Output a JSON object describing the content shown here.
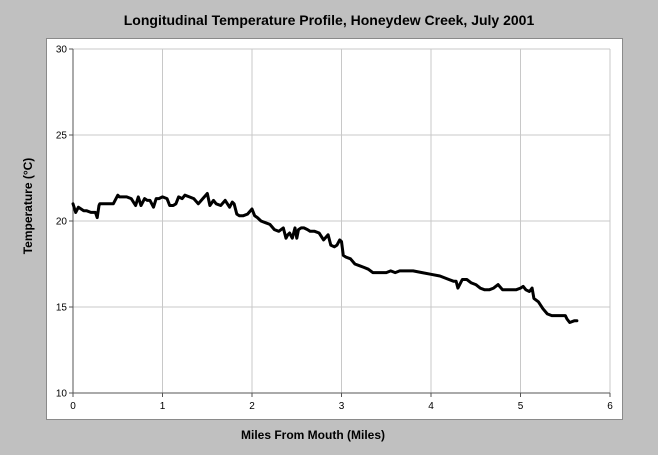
{
  "chart_data": {
    "type": "line",
    "title": "Longitudinal Temperature Profile, Honeydew Creek, July 2001",
    "xlabel": "Miles From Mouth (Miles)",
    "ylabel": "Temperature (°C)",
    "xlim": [
      0,
      6
    ],
    "ylim": [
      10,
      30
    ],
    "x_ticks": [
      "0",
      "1",
      "2",
      "3",
      "4",
      "5",
      "6"
    ],
    "y_ticks": [
      "10",
      "15",
      "20",
      "25",
      "30"
    ],
    "grid": true,
    "series_color": "#000000",
    "series": [
      {
        "x": [
          0,
          0.03,
          0.06,
          0.09,
          0.12,
          0.15,
          0.2,
          0.25,
          0.27,
          0.29,
          0.3,
          0.35,
          0.4,
          0.45,
          0.5,
          0.52,
          0.55,
          0.6,
          0.65,
          0.7,
          0.73,
          0.76,
          0.8,
          0.83,
          0.86,
          0.9,
          0.93,
          0.96,
          1.0,
          1.05,
          1.08,
          1.12,
          1.15,
          1.18,
          1.22,
          1.25,
          1.3,
          1.35,
          1.4,
          1.45,
          1.5,
          1.53,
          1.57,
          1.6,
          1.65,
          1.7,
          1.75,
          1.78,
          1.8,
          1.83,
          1.86,
          1.9,
          1.95,
          2.0,
          2.03,
          2.06,
          2.1,
          2.15,
          2.2,
          2.25,
          2.3,
          2.35,
          2.38,
          2.4,
          2.42,
          2.45,
          2.48,
          2.5,
          2.52,
          2.55,
          2.58,
          2.62,
          2.65,
          2.7,
          2.75,
          2.8,
          2.85,
          2.88,
          2.92,
          2.95,
          2.98,
          3.0,
          3.02,
          3.05,
          3.1,
          3.15,
          3.2,
          3.25,
          3.3,
          3.35,
          3.4,
          3.5,
          3.55,
          3.6,
          3.65,
          3.7,
          3.8,
          3.9,
          4.0,
          4.1,
          4.2,
          4.25,
          4.28,
          4.3,
          4.35,
          4.4,
          4.45,
          4.5,
          4.55,
          4.6,
          4.65,
          4.7,
          4.75,
          4.8,
          4.85,
          4.9,
          4.95,
          5.0,
          5.03,
          5.06,
          5.1,
          5.13,
          5.15,
          5.2,
          5.25,
          5.3,
          5.35,
          5.4,
          5.45,
          5.5,
          5.52,
          5.55,
          5.6,
          5.63
        ],
        "y": [
          21.0,
          20.5,
          20.8,
          20.7,
          20.6,
          20.6,
          20.5,
          20.5,
          20.2,
          20.9,
          21.0,
          21.0,
          21.0,
          21.0,
          21.5,
          21.4,
          21.4,
          21.4,
          21.3,
          20.9,
          21.4,
          20.9,
          21.3,
          21.2,
          21.2,
          20.8,
          21.3,
          21.3,
          21.4,
          21.3,
          20.9,
          20.9,
          21.0,
          21.4,
          21.3,
          21.5,
          21.4,
          21.3,
          21.0,
          21.3,
          21.6,
          20.9,
          21.2,
          21.0,
          20.9,
          21.2,
          20.8,
          21.1,
          21.0,
          20.4,
          20.3,
          20.3,
          20.4,
          20.7,
          20.3,
          20.2,
          20.0,
          19.9,
          19.8,
          19.5,
          19.4,
          19.6,
          19.0,
          19.2,
          19.3,
          19.0,
          19.6,
          19.0,
          19.5,
          19.6,
          19.6,
          19.5,
          19.4,
          19.4,
          19.3,
          18.9,
          19.2,
          18.6,
          18.5,
          18.6,
          18.9,
          18.8,
          18.0,
          17.9,
          17.8,
          17.5,
          17.4,
          17.3,
          17.2,
          17.0,
          17.0,
          17.0,
          17.1,
          17.0,
          17.1,
          17.1,
          17.1,
          17.0,
          16.9,
          16.8,
          16.6,
          16.5,
          16.5,
          16.1,
          16.6,
          16.6,
          16.4,
          16.3,
          16.1,
          16.0,
          16.0,
          16.1,
          16.3,
          16.0,
          16.0,
          16.0,
          16.0,
          16.1,
          16.2,
          16.0,
          15.9,
          16.1,
          15.5,
          15.3,
          14.9,
          14.6,
          14.5,
          14.5,
          14.5,
          14.5,
          14.3,
          14.1,
          14.2,
          14.2
        ]
      }
    ]
  }
}
